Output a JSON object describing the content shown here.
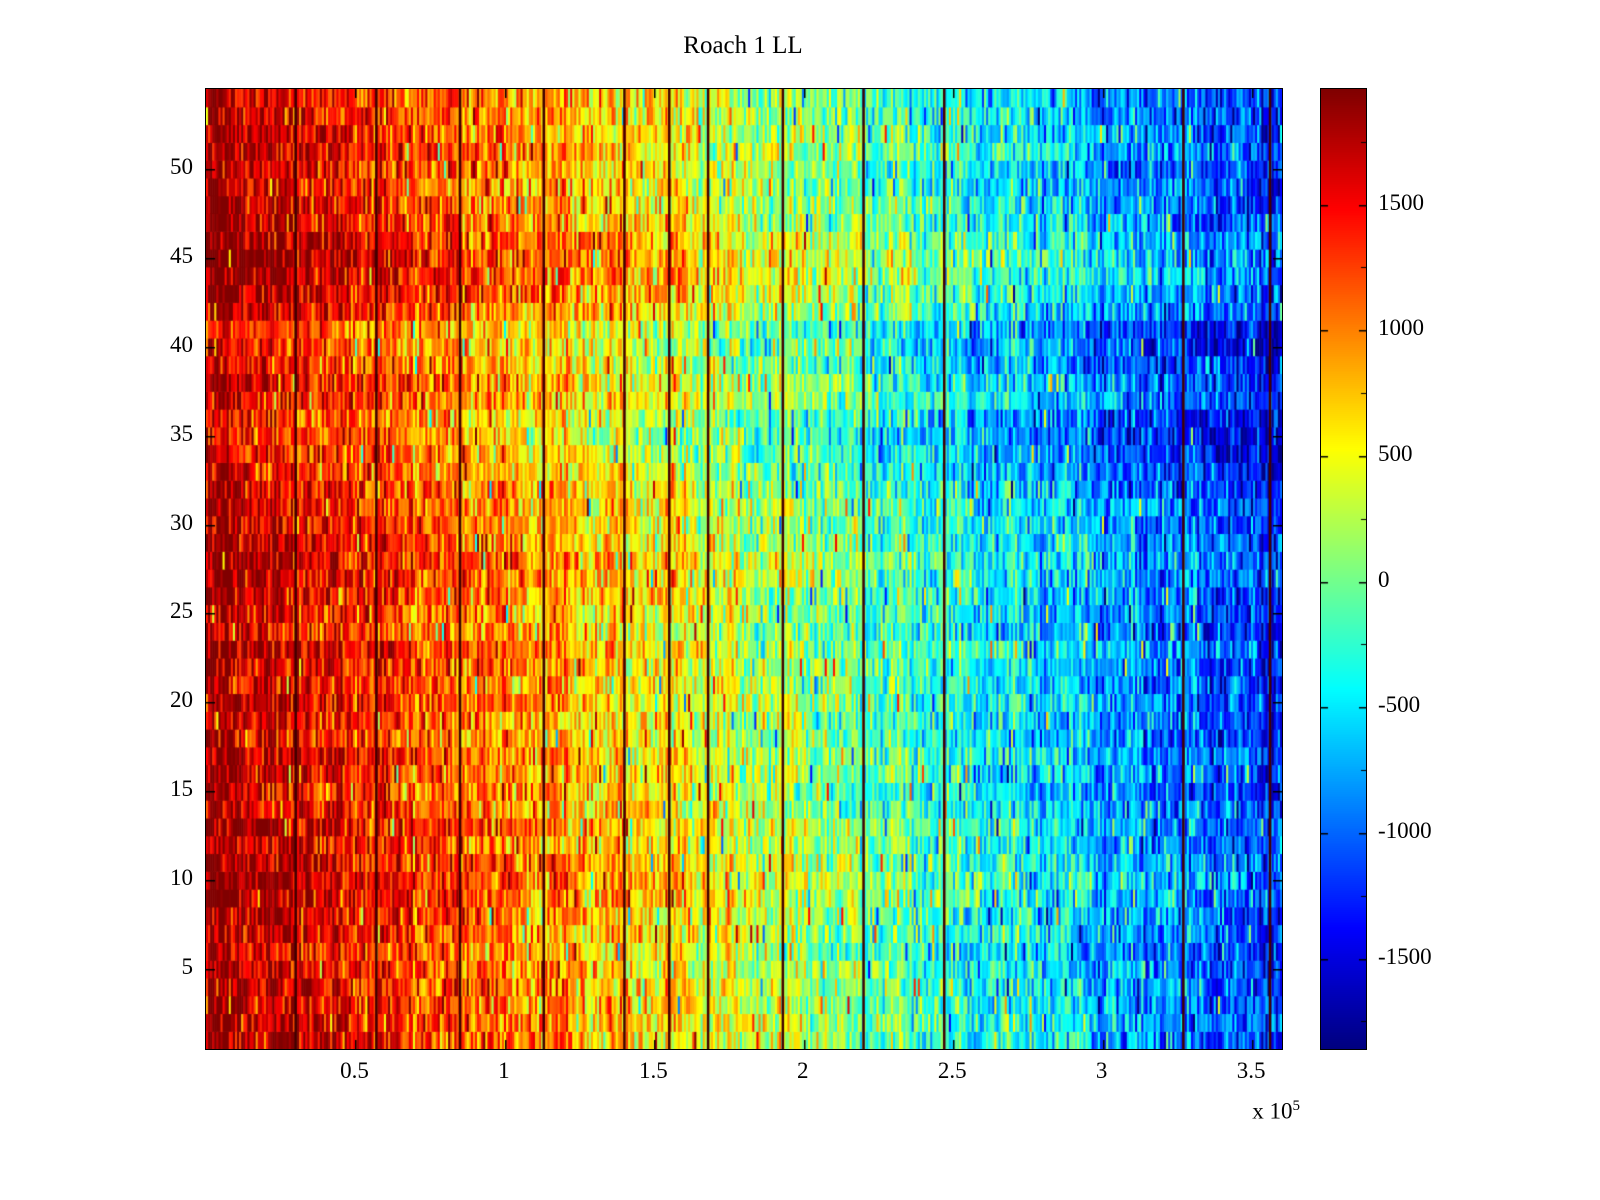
{
  "title": "Roach 1 LL",
  "axes": {
    "x_tick_labels": [
      "0.5",
      "1",
      "1.5",
      "2",
      "2.5",
      "3",
      "3.5"
    ],
    "x_tick_values": [
      50000,
      100000,
      150000,
      200000,
      250000,
      300000,
      350000
    ],
    "x_multiplier_base": "x 10",
    "x_multiplier_exponent": "5",
    "y_tick_labels": [
      "5",
      "10",
      "15",
      "20",
      "25",
      "30",
      "35",
      "40",
      "45",
      "50"
    ],
    "y_tick_values": [
      5,
      10,
      15,
      20,
      25,
      30,
      35,
      40,
      45,
      50
    ],
    "x_range": [
      0,
      360000
    ],
    "y_range": [
      0.5,
      54.5
    ]
  },
  "colorbar": {
    "tick_labels": [
      "1500",
      "1000",
      "500",
      "0",
      "-500",
      "-1000",
      "-1500"
    ],
    "tick_values": [
      1500,
      1000,
      500,
      0,
      -500,
      -1000,
      -1500
    ],
    "minor_tick_step": 250,
    "clim": [
      -1860,
      1960
    ]
  },
  "chart_data": {
    "type": "heatmap",
    "title": "Roach 1 LL",
    "colormap": "jet",
    "clim": [
      -1860,
      1960
    ],
    "x_range": [
      0,
      360000
    ],
    "y_range": [
      0.5,
      54.5
    ],
    "n_rows": 54,
    "n_cols": 520,
    "gradient": {
      "left_value": 1850,
      "right_value": -1250
    },
    "noise_sd": 330,
    "col_noise_amp": 150,
    "spike_prob": 0.03,
    "spike_min": 600,
    "spike_extra": 900,
    "seed": 1337,
    "row_offsets": [
      120,
      150,
      100,
      80,
      0,
      -60,
      40,
      80,
      180,
      200,
      160,
      40,
      120,
      -40,
      -80,
      0,
      60,
      -100,
      -60,
      40,
      -20,
      0,
      80,
      -120,
      -60,
      0,
      60,
      120,
      40,
      -40,
      0,
      -80,
      -200,
      -260,
      -340,
      -320,
      -80,
      -40,
      -240,
      -300,
      -280,
      0,
      200,
      260,
      280,
      220,
      60,
      0,
      -60,
      -40,
      80,
      40,
      -20,
      -60
    ],
    "event_lines_x": [
      30000,
      57000,
      85000,
      113000,
      140000,
      155000,
      168000,
      193000,
      220000,
      247000,
      327000,
      356000
    ],
    "event_line_color": "#400000",
    "event_line_width": 2.5
  }
}
